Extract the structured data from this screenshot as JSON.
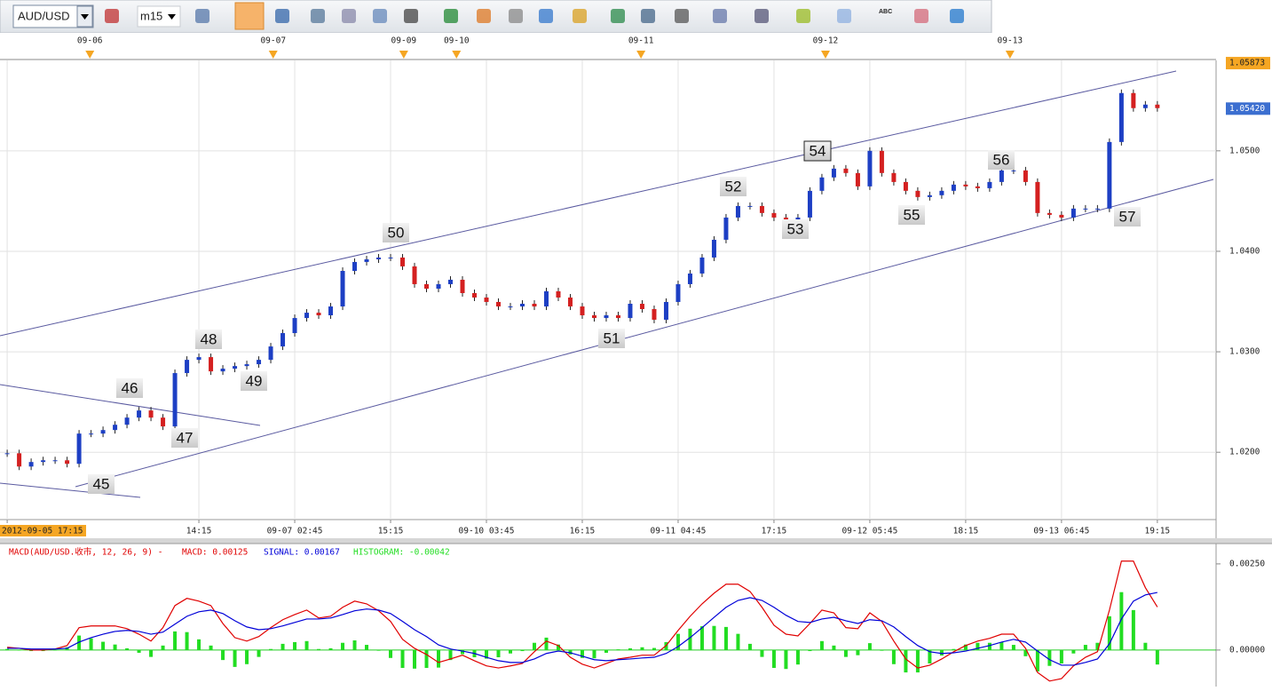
{
  "toolbar": {
    "symbol": "AUD/USD",
    "timeframe": "m15",
    "text_tool": "ABC"
  },
  "chart_data": [
    {
      "type": "candlestick",
      "up_color": "#1d3fc4",
      "down_color": "#d42020",
      "xlim": [
        -0.6,
        100.9
      ],
      "ylim": [
        1.0133,
        1.059
      ],
      "grid": true,
      "xticks": [
        {
          "value": 0,
          "label": "2012-09-05 17:15"
        },
        {
          "value": 16,
          "label": "14:15"
        },
        {
          "value": 24,
          "label": "09-07 02:45"
        },
        {
          "value": 32,
          "label": "15:15"
        },
        {
          "value": 40,
          "label": "09-10 03:45"
        },
        {
          "value": 48,
          "label": "16:15"
        },
        {
          "value": 56,
          "label": "09-11 04:45"
        },
        {
          "value": 64,
          "label": "17:15"
        },
        {
          "value": 72,
          "label": "09-12 05:45"
        },
        {
          "value": 80,
          "label": "18:15"
        },
        {
          "value": 88,
          "label": "09-13 06:45"
        },
        {
          "value": 96,
          "label": "19:15"
        }
      ],
      "date_markers": [
        {
          "value": 6.9,
          "label": "09-06"
        },
        {
          "value": 22.2,
          "label": "09-07"
        },
        {
          "value": 33.1,
          "label": "09-09"
        },
        {
          "value": 37.5,
          "label": "09-10"
        },
        {
          "value": 52.9,
          "label": "09-11"
        },
        {
          "value": 68.3,
          "label": "09-12"
        },
        {
          "value": 83.7,
          "label": "09-13"
        }
      ],
      "yticks": [
        {
          "value": 1.05,
          "label": "1.0500"
        },
        {
          "value": 1.04,
          "label": "1.0400"
        },
        {
          "value": 1.03,
          "label": "1.0300"
        },
        {
          "value": 1.02,
          "label": "1.0200"
        }
      ],
      "price_markers": [
        {
          "value": 1.05873,
          "label": "1.05873",
          "color": "#f5a623"
        },
        {
          "value": 1.0542,
          "label": "1.05420",
          "color": "#3c6fd0"
        }
      ],
      "annotations": [
        "45",
        "46",
        "47",
        "48",
        "49",
        "50",
        "51",
        "52",
        "53",
        "54",
        "55",
        "56",
        "57"
      ],
      "values": [
        1.0199,
        1.01858,
        1.01903,
        1.0192,
        1.0192,
        1.01885,
        1.02186,
        1.02186,
        1.02221,
        1.02274,
        1.02345,
        1.02416,
        1.02345,
        1.02257,
        1.02788,
        1.0292,
        1.02947,
        1.02805,
        1.02832,
        1.02858,
        1.02876,
        1.0292,
        1.03053,
        1.03186,
        1.03336,
        1.03389,
        1.03363,
        1.03451,
        1.03805,
        1.03894,
        1.0392,
        1.03938,
        1.03938,
        1.0385,
        1.03673,
        1.03628,
        1.03673,
        1.03717,
        1.03584,
        1.0354,
        1.03496,
        1.03451,
        1.03451,
        1.03478,
        1.03451,
        1.03602,
        1.0354,
        1.03451,
        1.03363,
        1.03336,
        1.03363,
        1.03336,
        1.03478,
        1.03425,
        1.03319,
        1.03496,
        1.03673,
        1.03779,
        1.03938,
        1.04115,
        1.04336,
        1.04451,
        1.04451,
        1.04381,
        1.04336,
        1.0431,
        1.04336,
        1.04602,
        1.04735,
        1.04823,
        1.04779,
        1.04646,
        1.05,
        1.04779,
        1.0469,
        1.04602,
        1.0454,
        1.04558,
        1.04602,
        1.04664,
        1.04646,
        1.04628,
        1.0469,
        1.04805,
        1.04805,
        1.0469,
        1.04381,
        1.04363,
        1.04336,
        1.04425,
        1.04425,
        1.04425,
        1.05088,
        1.05575,
        1.05425,
        1.0546,
        1.05425
      ]
    },
    {
      "type": "line",
      "title": "MACD(AUD/USD.收市, 12, 26, 9)  -",
      "xlim": [
        -0.6,
        100.9
      ],
      "ylim": [
        -0.00106,
        0.00309
      ],
      "yticks": [
        {
          "value": 0.0025,
          "label": "0.00250"
        },
        {
          "value": 0,
          "label": "0.00000"
        }
      ],
      "series": [
        {
          "name": "MACD: 0.00125",
          "color": "#e00000",
          "style": "line",
          "values": [
            8e-05,
            5e-05,
            0,
            0,
            3e-05,
            0.00013,
            0.00065,
            0.0007,
            0.0007,
            0.0007,
            0.00062,
            0.00046,
            0.00026,
            0.00065,
            0.00129,
            0.0015,
            0.00142,
            0.00129,
            0.00077,
            0.00036,
            0.00026,
            0.00039,
            0.00065,
            0.00088,
            0.00103,
            0.00116,
            0.00093,
            0.00098,
            0.00124,
            0.00142,
            0.00134,
            0.00114,
            0.00083,
            0.00031,
            5e-05,
            -0.00013,
            -0.00036,
            -0.00026,
            -0.00015,
            -0.00031,
            -0.00046,
            -0.00052,
            -0.00046,
            -0.00039,
            -5e-05,
            0.00026,
            0.00013,
            -0.00021,
            -0.00041,
            -0.00052,
            -0.00039,
            -0.00026,
            -0.00021,
            -0.00015,
            -0.00015,
            0.00013,
            0.00057,
            0.00098,
            0.00134,
            0.00165,
            0.00191,
            0.00191,
            0.0017,
            0.00124,
            0.00072,
            0.00046,
            0.00041,
            0.00077,
            0.00116,
            0.00108,
            0.00065,
            0.00062,
            0.00108,
            0.00083,
            0.00026,
            -0.00026,
            -0.00052,
            -0.00044,
            -0.00026,
            -5e-05,
            0.00013,
            0.00026,
            0.00034,
            0.00046,
            0.00046,
            5e-05,
            -0.00065,
            -0.0009,
            -0.00083,
            -0.00046,
            -0.00021,
            -5e-05,
            0.00116,
            0.00258,
            0.00258,
            0.00181,
            0.00125
          ]
        },
        {
          "name": "SIGNAL: 0.00167",
          "color": "#0000d8",
          "style": "line",
          "values": [
            5e-05,
            5e-05,
            3e-05,
            3e-05,
            3e-05,
            5e-05,
            0.00023,
            0.00036,
            0.00046,
            0.00054,
            0.00057,
            0.00054,
            0.00046,
            0.00052,
            0.00075,
            0.00098,
            0.00111,
            0.00116,
            0.00106,
            0.00085,
            0.00067,
            0.00059,
            0.00062,
            0.0007,
            0.0008,
            0.0009,
            0.0009,
            0.00093,
            0.00103,
            0.00114,
            0.00119,
            0.00116,
            0.00106,
            0.00083,
            0.00059,
            0.00039,
            0.00015,
            3e-05,
            -3e-05,
            -0.0001,
            -0.00021,
            -0.00031,
            -0.00036,
            -0.00036,
            -0.00026,
            -0.0001,
            -3e-05,
            -8e-05,
            -0.00018,
            -0.00028,
            -0.00031,
            -0.00028,
            -0.00026,
            -0.00023,
            -0.00021,
            -0.0001,
            0.0001,
            0.00036,
            0.00065,
            0.00095,
            0.00124,
            0.00144,
            0.00152,
            0.00144,
            0.00124,
            0.00101,
            0.00083,
            0.0008,
            0.0009,
            0.00095,
            0.00085,
            0.00077,
            0.00088,
            0.00085,
            0.00067,
            0.00039,
            0.00013,
            -5e-05,
            -0.0001,
            -8e-05,
            -3e-05,
            5e-05,
            0.00013,
            0.00023,
            0.00031,
            0.00023,
            -3e-05,
            -0.00028,
            -0.00044,
            -0.00044,
            -0.00036,
            -0.00026,
            0.00018,
            0.0009,
            0.00142,
            0.0016,
            0.00167
          ]
        },
        {
          "name": "HISTOGRAM: -0.00042",
          "color": "#22dd22",
          "style": "bar",
          "values": [
            3e-05,
            0,
            -3e-05,
            -3e-05,
            0,
            8e-05,
            0.00042,
            0.00034,
            0.00024,
            0.00016,
            5e-05,
            -8e-05,
            -0.0002,
            0.00013,
            0.00054,
            0.00052,
            0.00031,
            0.00013,
            -0.00029,
            -0.00049,
            -0.00041,
            -0.0002,
            3e-05,
            0.00018,
            0.00023,
            0.00026,
            3e-05,
            5e-05,
            0.00021,
            0.00028,
            0.00015,
            -2e-05,
            -0.00023,
            -0.00052,
            -0.00054,
            -0.00052,
            -0.00051,
            -0.00029,
            -0.00012,
            -0.00021,
            -0.00025,
            -0.00021,
            -0.0001,
            -3e-05,
            0.00021,
            0.00036,
            0.00016,
            -0.00013,
            -0.00023,
            -0.00024,
            -8e-05,
            2e-05,
            5e-05,
            8e-05,
            6e-05,
            0.00023,
            0.00047,
            0.00062,
            0.00069,
            0.0007,
            0.00067,
            0.00047,
            0.00018,
            -0.0002,
            -0.00052,
            -0.00055,
            -0.00042,
            -3e-05,
            0.00026,
            0.00013,
            -0.0002,
            -0.00015,
            0.0002,
            -2e-05,
            -0.00041,
            -0.00065,
            -0.00065,
            -0.00039,
            -0.00016,
            3e-05,
            0.00016,
            0.00021,
            0.00021,
            0.00023,
            0.00015,
            -0.00018,
            -0.00062,
            -0.00046,
            -0.00039,
            -0.0001,
            0.00015,
            0.00021,
            0.00098,
            0.00168,
            0.00116,
            0.00021,
            -0.00042
          ]
        }
      ]
    }
  ]
}
